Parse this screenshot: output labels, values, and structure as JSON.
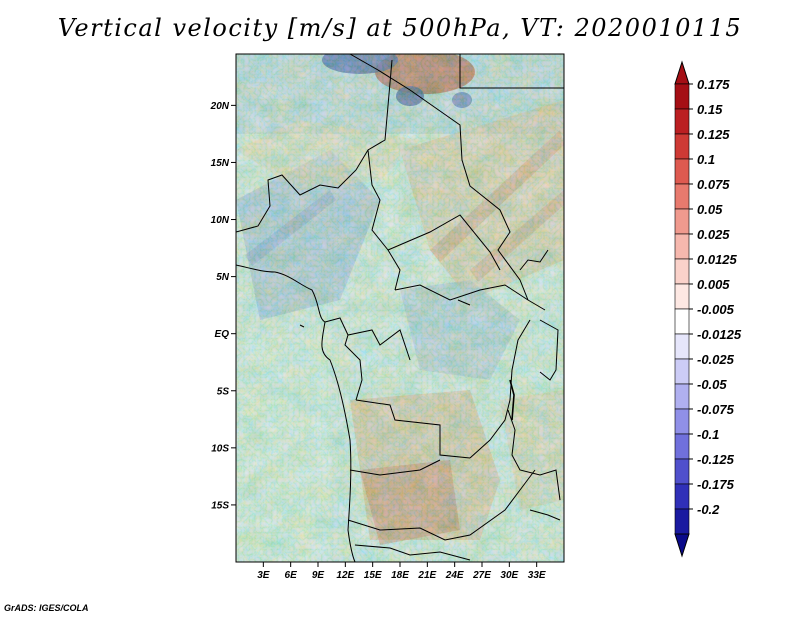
{
  "title": "Vertical velocity [m/s] at 500hPa, VT: 2020010115",
  "credit": "GrADS: IGES/COLA",
  "map": {
    "lon_range": [
      0,
      36
    ],
    "lat_range": [
      -20,
      24.5
    ],
    "lat_ticks": [
      {
        "value": 20,
        "label": "20N"
      },
      {
        "value": 15,
        "label": "15N"
      },
      {
        "value": 10,
        "label": "10N"
      },
      {
        "value": 5,
        "label": "5N"
      },
      {
        "value": 0,
        "label": "EQ"
      },
      {
        "value": -5,
        "label": "5S"
      },
      {
        "value": -10,
        "label": "10S"
      },
      {
        "value": -15,
        "label": "15S"
      }
    ],
    "lon_ticks": [
      {
        "value": 3,
        "label": "3E"
      },
      {
        "value": 6,
        "label": "6E"
      },
      {
        "value": 9,
        "label": "9E"
      },
      {
        "value": 12,
        "label": "12E"
      },
      {
        "value": 15,
        "label": "15E"
      },
      {
        "value": 18,
        "label": "18E"
      },
      {
        "value": 21,
        "label": "21E"
      },
      {
        "value": 24,
        "label": "24E"
      },
      {
        "value": 27,
        "label": "27E"
      },
      {
        "value": 30,
        "label": "30E"
      },
      {
        "value": 33,
        "label": "33E"
      }
    ]
  },
  "colorbar": {
    "levels": [
      {
        "label": "0.175",
        "color": "#a50f15"
      },
      {
        "label": "0.15",
        "color": "#bb1f22"
      },
      {
        "label": "0.125",
        "color": "#ce3a35"
      },
      {
        "label": "0.1",
        "color": "#de5a50"
      },
      {
        "label": "0.075",
        "color": "#e87a6e"
      },
      {
        "label": "0.05",
        "color": "#f09a8e"
      },
      {
        "label": "0.025",
        "color": "#f6b8ae"
      },
      {
        "label": "0.0125",
        "color": "#fad2ca"
      },
      {
        "label": "0.005",
        "color": "#fde8e3"
      },
      {
        "label": "-0.005",
        "color": "#ffffff"
      },
      {
        "label": "-0.0125",
        "color": "#e6e6fb"
      },
      {
        "label": "-0.025",
        "color": "#ccccf6"
      },
      {
        "label": "-0.05",
        "color": "#b0b0f0"
      },
      {
        "label": "-0.075",
        "color": "#9090e8"
      },
      {
        "label": "-0.1",
        "color": "#7070dc"
      },
      {
        "label": "-0.125",
        "color": "#5050cc"
      },
      {
        "label": "-0.175",
        "color": "#3030b8"
      },
      {
        "label": "-0.2",
        "color": "#1a1aa0"
      }
    ],
    "top_color": "#a50f15",
    "bottom_color": "#0a0a8a"
  }
}
